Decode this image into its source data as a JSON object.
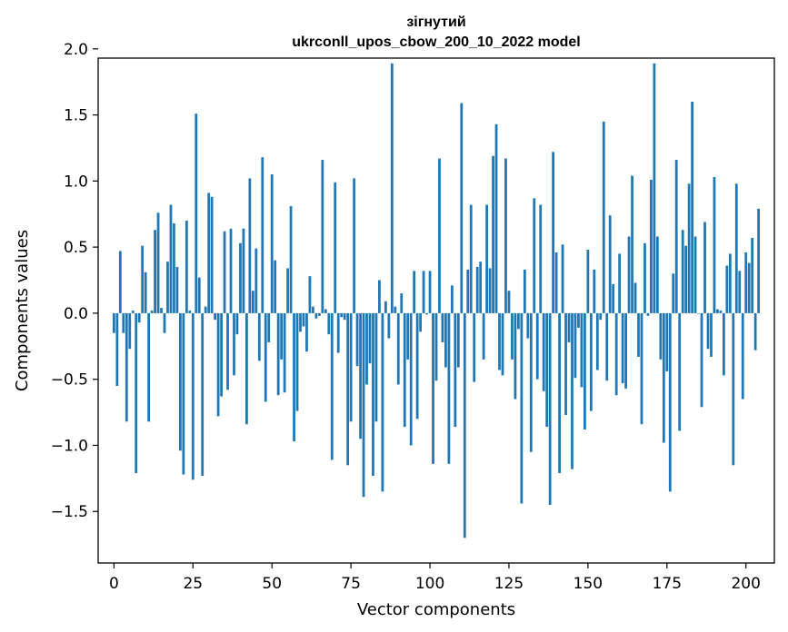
{
  "chart_data": {
    "type": "bar",
    "title_line1": "зігнутий",
    "title_line2": "ukrconll_upos_cbow_200_10_2022 model",
    "xlabel": "Vector components",
    "ylabel": "Components values",
    "xlim": [
      -5,
      209
    ],
    "ylim": [
      -1.89,
      1.93
    ],
    "xticks": [
      0,
      25,
      50,
      75,
      100,
      125,
      150,
      175,
      200
    ],
    "yticks": [
      -1.5,
      -1.0,
      -0.5,
      0.0,
      0.5,
      1.0,
      1.5,
      2.0
    ],
    "ytick_labels": [
      "−1.5",
      "−1.0",
      "−0.5",
      "0.0",
      "0.5",
      "1.0",
      "1.5",
      "2.0"
    ],
    "bar_color": "#1f77b4",
    "values": [
      -0.15,
      -0.55,
      0.47,
      -0.15,
      -0.82,
      -0.27,
      0.02,
      -1.21,
      -0.07,
      0.51,
      0.31,
      -0.82,
      0.02,
      0.63,
      0.76,
      0.04,
      -0.15,
      0.39,
      0.82,
      0.68,
      0.35,
      -1.04,
      -1.22,
      0.7,
      0.02,
      -1.26,
      1.51,
      0.27,
      -1.23,
      0.05,
      0.91,
      0.88,
      -0.05,
      -0.78,
      -0.63,
      0.62,
      -0.58,
      0.64,
      -0.47,
      -0.16,
      0.53,
      0.64,
      -0.84,
      1.02,
      0.17,
      0.49,
      -0.36,
      1.18,
      -0.67,
      -0.22,
      1.05,
      0.4,
      -0.62,
      -0.35,
      -0.6,
      0.34,
      0.81,
      -0.97,
      -0.74,
      -0.14,
      -0.1,
      -0.29,
      0.28,
      0.05,
      -0.04,
      -0.02,
      1.16,
      0.03,
      -0.16,
      -1.11,
      0.99,
      -0.3,
      -0.03,
      -0.05,
      -1.15,
      -0.82,
      1.02,
      -0.4,
      -0.95,
      -1.39,
      -0.54,
      -0.38,
      -1.23,
      -0.82,
      0.25,
      -1.35,
      0.09,
      -0.19,
      1.89,
      0.05,
      -0.54,
      0.15,
      -0.86,
      -0.35,
      -1.0,
      0.32,
      -0.8,
      -0.14,
      0.32,
      -0.01,
      0.32,
      -1.14,
      -0.51,
      1.17,
      -0.22,
      -0.41,
      -1.14,
      0.21,
      -0.86,
      -0.41,
      1.59,
      -1.7,
      0.33,
      0.82,
      -0.52,
      0.35,
      0.39,
      -0.35,
      0.82,
      0.34,
      1.19,
      1.43,
      -0.43,
      -0.47,
      1.17,
      0.17,
      -0.35,
      -0.65,
      -0.12,
      -1.44,
      0.33,
      -0.19,
      -1.05,
      0.87,
      -0.5,
      0.82,
      -0.59,
      -0.86,
      -1.45,
      1.22,
      0.46,
      -1.21,
      0.52,
      -0.77,
      -0.22,
      -1.18,
      -0.49,
      -0.11,
      -0.56,
      -0.88,
      0.48,
      -0.74,
      0.33,
      -0.43,
      -0.05,
      1.45,
      -0.51,
      0.74,
      0.22,
      -0.62,
      0.45,
      -0.53,
      -0.57,
      0.58,
      1.04,
      0.23,
      -0.33,
      -0.84,
      0.53,
      -0.02,
      1.01,
      1.89,
      0.58,
      -0.35,
      -0.98,
      -0.44,
      -1.35,
      0.3,
      1.16,
      -0.89,
      0.63,
      0.51,
      0.98,
      1.6,
      0.58,
      0.0,
      -0.71,
      0.69,
      -0.27,
      -0.33,
      1.03,
      0.03,
      0.02,
      -0.47,
      0.36,
      0.45,
      -1.15,
      0.98,
      0.32,
      -0.65,
      0.46,
      0.38,
      0.57,
      -0.28,
      0.79
    ]
  }
}
